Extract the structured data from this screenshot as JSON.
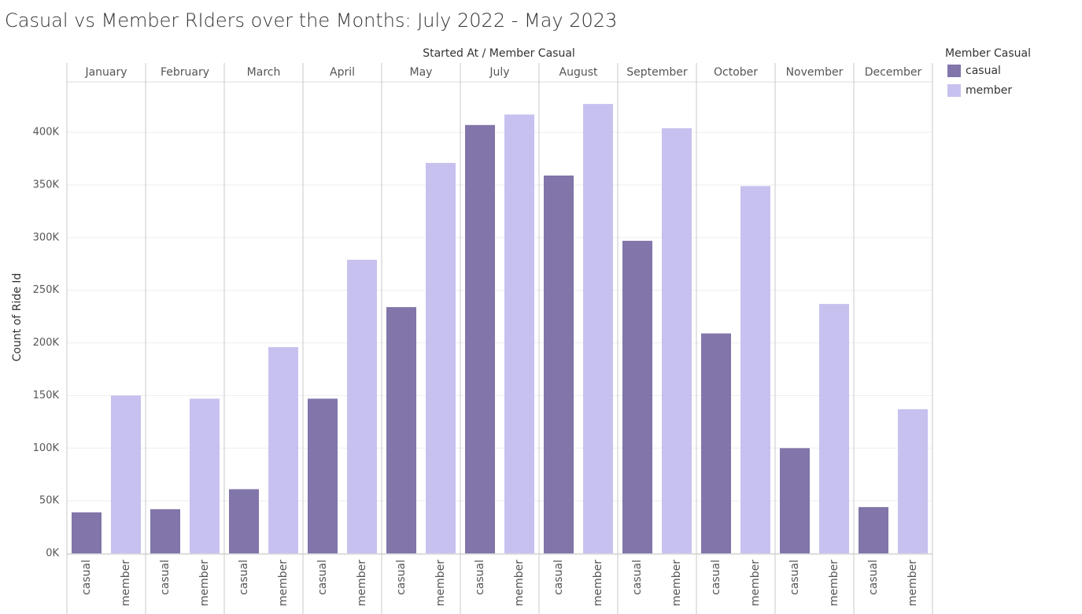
{
  "chart_data": {
    "type": "bar",
    "title": "Casual vs Member RIders over the Months: July 2022 - May 2023",
    "column_header": "Started At / Member Casual",
    "y_label": "Count of Ride Id",
    "legend_title": "Member Casual",
    "categories": [
      "January",
      "February",
      "March",
      "April",
      "May",
      "July",
      "August",
      "September",
      "October",
      "November",
      "December"
    ],
    "series": [
      {
        "name": "casual",
        "color": "#8175aa",
        "values": [
          39000,
          42000,
          61000,
          147000,
          234000,
          407000,
          359000,
          297000,
          209000,
          100000,
          44000
        ]
      },
      {
        "name": "member",
        "color": "#c7c1f0",
        "values": [
          150000,
          147000,
          196000,
          279000,
          371000,
          417000,
          427000,
          404000,
          349000,
          237000,
          137000
        ]
      }
    ],
    "ylim": [
      0,
      448000
    ],
    "yticks": [
      {
        "value": 0,
        "label": "0K"
      },
      {
        "value": 50000,
        "label": "50K"
      },
      {
        "value": 100000,
        "label": "100K"
      },
      {
        "value": 150000,
        "label": "150K"
      },
      {
        "value": 200000,
        "label": "200K"
      },
      {
        "value": 250000,
        "label": "250K"
      },
      {
        "value": 300000,
        "label": "300K"
      },
      {
        "value": 350000,
        "label": "350K"
      },
      {
        "value": 400000,
        "label": "400K"
      }
    ],
    "grid": true
  }
}
